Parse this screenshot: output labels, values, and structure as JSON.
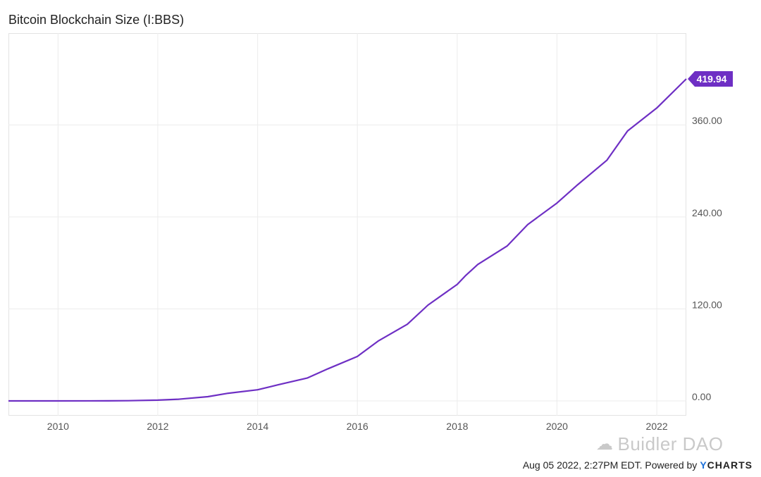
{
  "chart_data": {
    "type": "line",
    "title": "Bitcoin Blockchain Size (I:BBS)",
    "xlabel": "",
    "ylabel": "",
    "x_ticks": [
      "2010",
      "2012",
      "2014",
      "2016",
      "2018",
      "2020",
      "2022"
    ],
    "x_range": [
      "2009-01-03",
      "2022-08-05"
    ],
    "y_ticks": [
      "0.00",
      "120.00",
      "240.00",
      "360.00"
    ],
    "ylim": [
      -3,
      420
    ],
    "grid": true,
    "last_value_label": "419.94",
    "colors": {
      "line": "#6e2fc4",
      "last_value_bg": "#6e2fc4",
      "grid": "#ececec"
    },
    "series": [
      {
        "x": [
          "2009-01-03",
          "2010-01-01",
          "2011-01-01",
          "2011-06-01",
          "2012-01-01",
          "2012-06-01",
          "2013-01-01",
          "2013-06-01",
          "2014-01-01",
          "2014-06-01",
          "2015-01-01",
          "2015-06-01",
          "2016-01-01",
          "2016-06-01",
          "2017-01-01",
          "2017-06-01",
          "2018-01-01",
          "2018-03-01",
          "2018-06-01",
          "2019-01-01",
          "2019-06-01",
          "2020-01-01",
          "2020-06-01",
          "2021-01-01",
          "2021-06-01",
          "2022-01-01",
          "2022-08-05"
        ],
        "values": [
          0,
          0.002,
          0.05,
          0.3,
          1.0,
          2.2,
          5.5,
          10.0,
          14.5,
          21.0,
          30.0,
          42.0,
          58.0,
          78.0,
          100.0,
          125.0,
          152.0,
          163.0,
          178.0,
          202.0,
          230.0,
          258.0,
          282.0,
          314.0,
          352.0,
          382.0,
          419.94
        ]
      }
    ]
  },
  "footer": {
    "timestamp": "Aug 05 2022, 2:27PM EDT.",
    "powered_by": "Powered by",
    "brand_y": "Y",
    "brand_rest": "CHARTS"
  },
  "watermark": {
    "icon": "wechat-icon",
    "text": "Buidler DAO"
  }
}
